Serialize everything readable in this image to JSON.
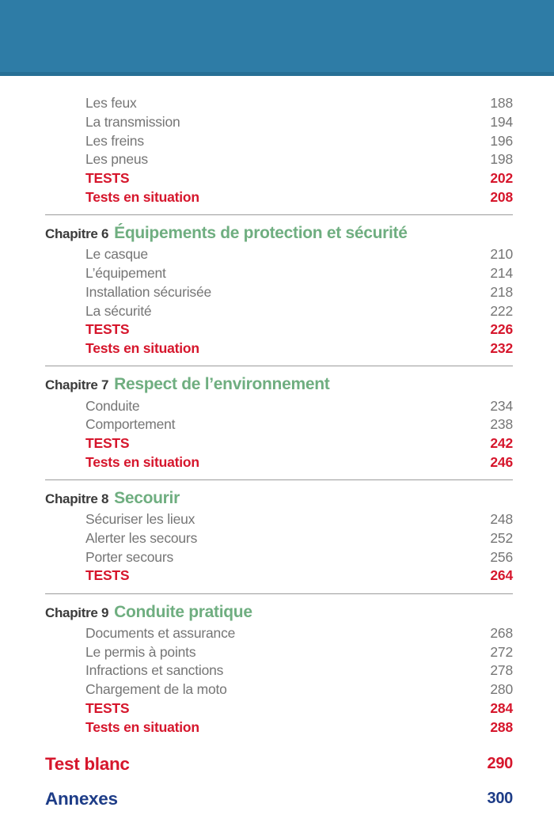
{
  "page": {
    "background": "#ffffff",
    "header_color": "#2e7ca6",
    "header_edge_color": "#276f95"
  },
  "colors": {
    "item_text": "#757575",
    "tests_red": "#d6162c",
    "chapter_label": "#3b3b3b",
    "chapter_title_green": "#6fae80",
    "annexes_navy": "#1d3c87",
    "divider": "#9b9b9b"
  },
  "toc": {
    "sections": [
      {
        "chapter_label": "",
        "chapter_title": "",
        "items": [
          {
            "label": "Les feux",
            "page": "188",
            "style": "normal"
          },
          {
            "label": "La transmission",
            "page": "194",
            "style": "normal"
          },
          {
            "label": "Les freins",
            "page": "196",
            "style": "normal"
          },
          {
            "label": "Les pneus",
            "page": "198",
            "style": "normal"
          },
          {
            "label": "TESTS",
            "page": "202",
            "style": "tests"
          },
          {
            "label": "Tests en situation",
            "page": "208",
            "style": "tests"
          }
        ]
      },
      {
        "chapter_label": "Chapitre 6",
        "chapter_title": "Équipements de protection et sécurité",
        "items": [
          {
            "label": "Le casque",
            "page": "210",
            "style": "normal"
          },
          {
            "label": "L’équipement",
            "page": "214",
            "style": "normal"
          },
          {
            "label": "Installation sécurisée",
            "page": "218",
            "style": "normal"
          },
          {
            "label": "La sécurité",
            "page": "222",
            "style": "normal"
          },
          {
            "label": "TESTS",
            "page": "226",
            "style": "tests"
          },
          {
            "label": "Tests en situation",
            "page": "232",
            "style": "tests"
          }
        ]
      },
      {
        "chapter_label": "Chapitre 7",
        "chapter_title": "Respect de l’environnement",
        "items": [
          {
            "label": "Conduite",
            "page": "234",
            "style": "normal"
          },
          {
            "label": "Comportement",
            "page": "238",
            "style": "normal"
          },
          {
            "label": "TESTS",
            "page": "242",
            "style": "tests"
          },
          {
            "label": "Tests en situation",
            "page": "246",
            "style": "tests"
          }
        ]
      },
      {
        "chapter_label": "Chapitre 8",
        "chapter_title": "Secourir",
        "items": [
          {
            "label": "Sécuriser les lieux",
            "page": "248",
            "style": "normal"
          },
          {
            "label": "Alerter les secours",
            "page": "252",
            "style": "normal"
          },
          {
            "label": "Porter secours",
            "page": "256",
            "style": "normal"
          },
          {
            "label": "TESTS",
            "page": "264",
            "style": "tests"
          }
        ]
      },
      {
        "chapter_label": "Chapitre 9",
        "chapter_title": "Conduite pratique",
        "items": [
          {
            "label": "Documents et assurance",
            "page": "268",
            "style": "normal"
          },
          {
            "label": "Le permis à points",
            "page": "272",
            "style": "normal"
          },
          {
            "label": "Infractions et sanctions",
            "page": "278",
            "style": "normal"
          },
          {
            "label": "Chargement de la moto",
            "page": "280",
            "style": "normal"
          },
          {
            "label": "TESTS",
            "page": "284",
            "style": "tests"
          },
          {
            "label": "Tests en situation",
            "page": "288",
            "style": "tests"
          }
        ]
      }
    ],
    "footer_entries": [
      {
        "label": "Test blanc",
        "page": "290",
        "color": "red"
      },
      {
        "label": "Annexes",
        "page": "300",
        "color": "navy"
      }
    ]
  }
}
